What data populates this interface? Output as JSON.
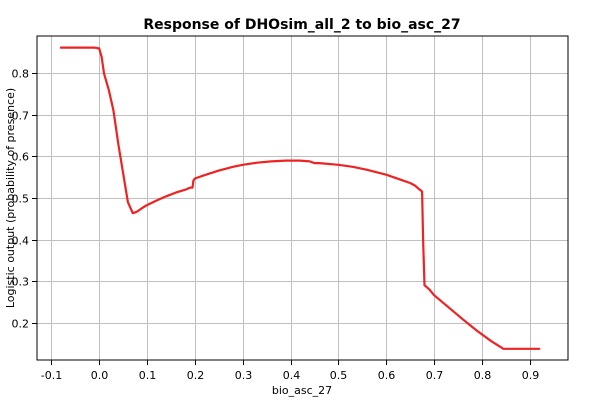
{
  "chart_data": {
    "type": "line",
    "title": "Response of DHOsim_all_2 to bio_asc_27",
    "xlabel": "bio_asc_27",
    "ylabel": "Logistic output (probability of presence)",
    "xlim": [
      -0.13,
      0.98
    ],
    "ylim": [
      0.11,
      0.89
    ],
    "x_ticks": [
      -0.1,
      0.0,
      0.1,
      0.2,
      0.3,
      0.4,
      0.5,
      0.6,
      0.7,
      0.8,
      0.9
    ],
    "x_tick_labels": [
      "-0.1",
      "0.0",
      "0.1",
      "0.2",
      "0.3",
      "0.4",
      "0.5",
      "0.6",
      "0.7",
      "0.8",
      "0.9"
    ],
    "y_ticks": [
      0.2,
      0.3,
      0.4,
      0.5,
      0.6,
      0.7,
      0.8
    ],
    "y_tick_labels": [
      "0.2",
      "0.3",
      "0.4",
      "0.5",
      "0.6",
      "0.7",
      "0.8"
    ],
    "grid": true,
    "series": [
      {
        "color": "#ee2222",
        "x": [
          -0.08,
          -0.07,
          -0.04,
          -0.01,
          0.0,
          0.005,
          0.01,
          0.02,
          0.03,
          0.04,
          0.05,
          0.06,
          0.07,
          0.075,
          0.08,
          0.09,
          0.1,
          0.12,
          0.14,
          0.16,
          0.18,
          0.19,
          0.195,
          0.197,
          0.2,
          0.22,
          0.25,
          0.28,
          0.3,
          0.33,
          0.36,
          0.39,
          0.4,
          0.42,
          0.44,
          0.45,
          0.46,
          0.5,
          0.53,
          0.56,
          0.6,
          0.63,
          0.65,
          0.66,
          0.67,
          0.673,
          0.675,
          0.677,
          0.68,
          0.69,
          0.7,
          0.73,
          0.76,
          0.79,
          0.82,
          0.845,
          0.86,
          0.9,
          0.92
        ],
        "y": [
          0.862,
          0.862,
          0.862,
          0.862,
          0.86,
          0.84,
          0.8,
          0.76,
          0.71,
          0.63,
          0.56,
          0.49,
          0.464,
          0.465,
          0.468,
          0.476,
          0.483,
          0.494,
          0.504,
          0.513,
          0.52,
          0.525,
          0.525,
          0.542,
          0.547,
          0.555,
          0.566,
          0.575,
          0.58,
          0.585,
          0.588,
          0.59,
          0.59,
          0.59,
          0.588,
          0.584,
          0.584,
          0.58,
          0.575,
          0.568,
          0.556,
          0.544,
          0.536,
          0.53,
          0.52,
          0.518,
          0.515,
          0.4,
          0.29,
          0.28,
          0.266,
          0.237,
          0.208,
          0.18,
          0.155,
          0.137,
          0.137,
          0.137,
          0.137
        ]
      }
    ]
  }
}
